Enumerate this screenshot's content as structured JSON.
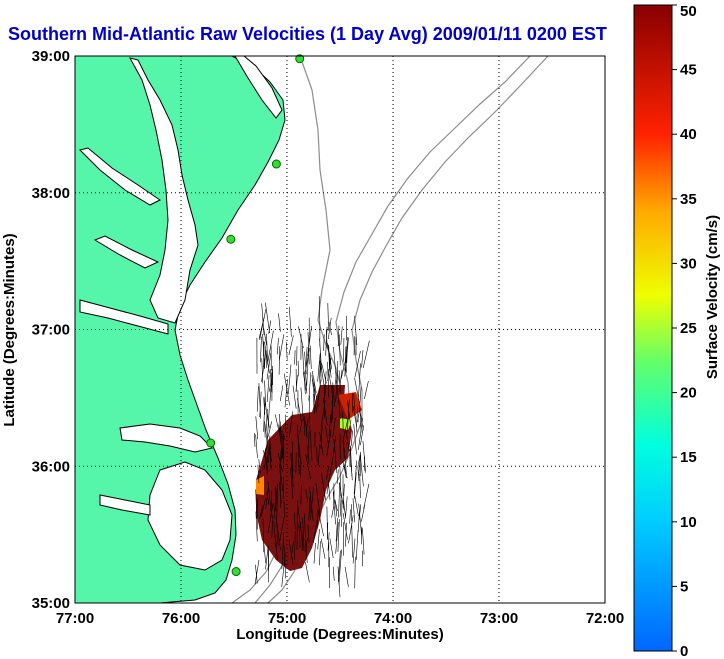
{
  "title": "Southern Mid-Atlantic Raw Velocities (1 Day Avg) 2009/01/11 0200 EST",
  "map": {
    "xlabel": "Longitude (Degrees:Minutes)",
    "ylabel": "Latitude (Degrees:Minutes)",
    "xticks": [
      "77:00",
      "76:00",
      "75:00",
      "74:00",
      "73:00",
      "72:00"
    ],
    "yticks": [
      "35:00",
      "36:00",
      "37:00",
      "38:00",
      "39:00"
    ],
    "lon_range": [
      -77,
      -72
    ],
    "lat_range": [
      35,
      39
    ],
    "grid": "dotted",
    "land_color": "#55f5aa",
    "ocean_color": "#ffffff",
    "coast_color": "#000000",
    "bathymetry_color": "#8c8c8c"
  },
  "stations": [
    {
      "lon": -74.88,
      "lat": 38.98
    },
    {
      "lon": -75.1,
      "lat": 38.21
    },
    {
      "lon": -75.53,
      "lat": 37.66
    },
    {
      "lon": -75.72,
      "lat": 36.17
    },
    {
      "lon": -75.48,
      "lat": 35.23
    }
  ],
  "colorbar": {
    "label": "Surface Velocity (cm/s)",
    "ticks": [
      "0",
      "5",
      "10",
      "15",
      "20",
      "25",
      "30",
      "35",
      "40",
      "45",
      "50"
    ],
    "min": 0,
    "max": 50,
    "colormap": "jet"
  }
}
